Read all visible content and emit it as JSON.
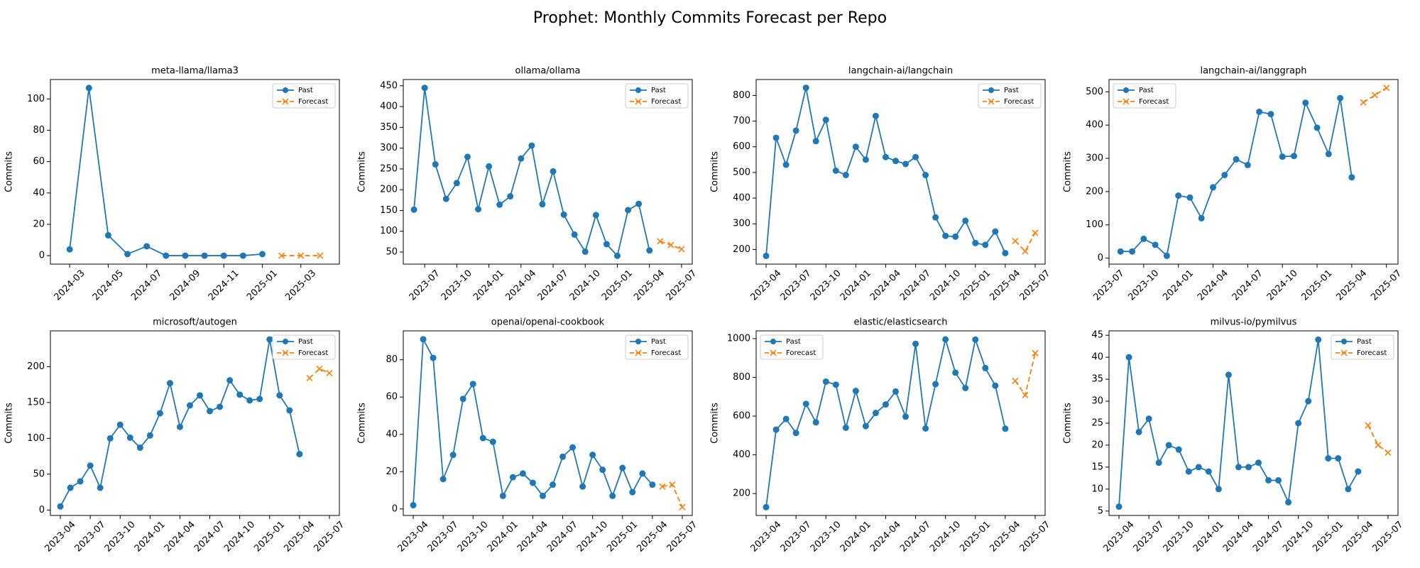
{
  "title": "Prophet: Monthly Commits Forecast per Repo",
  "chart_data": [
    {
      "type": "line",
      "title": "meta-llama/llama3",
      "ylabel": "Commits",
      "legend": "upper right",
      "x": [
        "2024-03",
        "2024-04",
        "2024-05",
        "2024-06",
        "2024-07",
        "2024-08",
        "2024-09",
        "2024-10",
        "2024-11",
        "2024-12",
        "2025-01",
        "2025-02",
        "2025-03",
        "2025-04"
      ],
      "series": [
        {
          "name": "Past",
          "color": "#1f77b4",
          "marker": "o",
          "linestyle": "solid",
          "values": [
            4,
            107,
            13,
            1,
            6,
            0,
            0,
            0,
            0,
            0,
            1,
            null,
            null,
            null
          ]
        },
        {
          "name": "Forecast",
          "color": "#ff7f0e",
          "marker": "x",
          "linestyle": "dashed",
          "values": [
            null,
            null,
            null,
            null,
            null,
            null,
            null,
            null,
            null,
            null,
            null,
            0,
            0,
            0
          ]
        }
      ],
      "xlim": [
        "2024-02",
        "2025-05"
      ],
      "xticks": [
        "2024-03",
        "2024-05",
        "2024-07",
        "2024-09",
        "2024-11",
        "2025-01",
        "2025-03"
      ],
      "ylim": [
        -5.4,
        112.4
      ],
      "yticks": [
        0,
        20,
        40,
        60,
        80,
        100
      ]
    },
    {
      "type": "line",
      "title": "ollama/ollama",
      "ylabel": "Commits",
      "legend": "upper right",
      "x": [
        "2023-06",
        "2023-07",
        "2023-08",
        "2023-09",
        "2023-10",
        "2023-11",
        "2023-12",
        "2024-01",
        "2024-02",
        "2024-03",
        "2024-04",
        "2024-05",
        "2024-06",
        "2024-07",
        "2024-08",
        "2024-09",
        "2024-10",
        "2024-11",
        "2024-12",
        "2025-01",
        "2025-02",
        "2025-03",
        "2025-04",
        "2025-05",
        "2025-06",
        "2025-07"
      ],
      "series": [
        {
          "name": "Past",
          "color": "#1f77b4",
          "marker": "o",
          "linestyle": "solid",
          "values": [
            152,
            445,
            261,
            178,
            216,
            279,
            153,
            256,
            164,
            184,
            275,
            306,
            165,
            244,
            140,
            92,
            51,
            139,
            69,
            41,
            151,
            166,
            54,
            null,
            null,
            null
          ]
        },
        {
          "name": "Forecast",
          "color": "#ff7f0e",
          "marker": "x",
          "linestyle": "dashed",
          "values": [
            null,
            null,
            null,
            null,
            null,
            null,
            null,
            null,
            null,
            null,
            null,
            null,
            null,
            null,
            null,
            null,
            null,
            null,
            null,
            null,
            null,
            null,
            null,
            76,
            67,
            57
          ]
        }
      ],
      "xlim": [
        "2023-05",
        "2025-08"
      ],
      "xticks": [
        "2023-07",
        "2023-10",
        "2024-01",
        "2024-04",
        "2024-07",
        "2024-10",
        "2025-01",
        "2025-04",
        "2025-07"
      ],
      "ylim": [
        21,
        465
      ],
      "yticks": [
        50,
        100,
        150,
        200,
        250,
        300,
        350,
        400,
        450
      ]
    },
    {
      "type": "line",
      "title": "langchain-ai/langchain",
      "ylabel": "Commits",
      "legend": "upper right",
      "x": [
        "2023-04",
        "2023-05",
        "2023-06",
        "2023-07",
        "2023-08",
        "2023-09",
        "2023-10",
        "2023-11",
        "2023-12",
        "2024-01",
        "2024-02",
        "2024-03",
        "2024-04",
        "2024-05",
        "2024-06",
        "2024-07",
        "2024-08",
        "2024-09",
        "2024-10",
        "2024-11",
        "2024-12",
        "2025-01",
        "2025-02",
        "2025-03",
        "2025-04",
        "2025-05",
        "2025-06",
        "2025-07"
      ],
      "series": [
        {
          "name": "Past",
          "color": "#1f77b4",
          "marker": "o",
          "linestyle": "solid",
          "values": [
            175,
            635,
            530,
            663,
            830,
            622,
            705,
            507,
            490,
            600,
            550,
            720,
            560,
            545,
            533,
            560,
            490,
            325,
            253,
            250,
            312,
            225,
            218,
            270,
            186,
            null,
            null,
            null
          ]
        },
        {
          "name": "Forecast",
          "color": "#ff7f0e",
          "marker": "x",
          "linestyle": "dashed",
          "values": [
            null,
            null,
            null,
            null,
            null,
            null,
            null,
            null,
            null,
            null,
            null,
            null,
            null,
            null,
            null,
            null,
            null,
            null,
            null,
            null,
            null,
            null,
            null,
            null,
            null,
            233,
            193,
            265
          ]
        }
      ],
      "xlim": [
        "2023-03",
        "2025-08"
      ],
      "xticks": [
        "2023-04",
        "2023-07",
        "2023-10",
        "2024-01",
        "2024-04",
        "2024-07",
        "2024-10",
        "2025-01",
        "2025-04",
        "2025-07"
      ],
      "ylim": [
        143,
        862
      ],
      "yticks": [
        200,
        300,
        400,
        500,
        600,
        700,
        800
      ]
    },
    {
      "type": "line",
      "title": "langchain-ai/langgraph",
      "ylabel": "Commits",
      "legend": "upper left",
      "x": [
        "2023-08",
        "2023-09",
        "2023-10",
        "2023-11",
        "2023-12",
        "2024-01",
        "2024-02",
        "2024-03",
        "2024-04",
        "2024-05",
        "2024-06",
        "2024-07",
        "2024-08",
        "2024-09",
        "2024-10",
        "2024-11",
        "2024-12",
        "2025-01",
        "2025-02",
        "2025-03",
        "2025-04",
        "2025-05",
        "2025-06",
        "2025-07"
      ],
      "series": [
        {
          "name": "Past",
          "color": "#1f77b4",
          "marker": "o",
          "linestyle": "solid",
          "values": [
            20,
            20,
            58,
            40,
            7,
            188,
            182,
            120,
            213,
            250,
            297,
            280,
            440,
            433,
            305,
            307,
            467,
            392,
            313,
            481,
            243,
            null,
            null,
            null
          ]
        },
        {
          "name": "Forecast",
          "color": "#ff7f0e",
          "marker": "x",
          "linestyle": "dashed",
          "values": [
            null,
            null,
            null,
            null,
            null,
            null,
            null,
            null,
            null,
            null,
            null,
            null,
            null,
            null,
            null,
            null,
            null,
            null,
            null,
            null,
            null,
            468,
            490,
            512
          ]
        }
      ],
      "xlim": [
        "2023-07",
        "2025-08"
      ],
      "xticks": [
        "2023-07",
        "2023-10",
        "2024-01",
        "2024-04",
        "2024-07",
        "2024-10",
        "2025-01",
        "2025-04",
        "2025-07"
      ],
      "ylim": [
        -18,
        537
      ],
      "yticks": [
        0,
        100,
        200,
        300,
        400,
        500
      ]
    },
    {
      "type": "line",
      "title": "microsoft/autogen",
      "ylabel": "Commits",
      "legend": "upper right",
      "x": [
        "2023-04",
        "2023-05",
        "2023-06",
        "2023-07",
        "2023-08",
        "2023-09",
        "2023-10",
        "2023-11",
        "2023-12",
        "2024-01",
        "2024-02",
        "2024-03",
        "2024-04",
        "2024-05",
        "2024-06",
        "2024-07",
        "2024-08",
        "2024-09",
        "2024-10",
        "2024-11",
        "2024-12",
        "2025-01",
        "2025-02",
        "2025-03",
        "2025-04",
        "2025-05",
        "2025-06",
        "2025-07"
      ],
      "series": [
        {
          "name": "Past",
          "color": "#1f77b4",
          "marker": "o",
          "linestyle": "solid",
          "values": [
            5,
            31,
            40,
            62,
            31,
            100,
            119,
            101,
            87,
            104,
            135,
            177,
            116,
            146,
            160,
            138,
            144,
            181,
            161,
            153,
            155,
            238,
            160,
            139,
            78,
            null,
            null,
            null
          ]
        },
        {
          "name": "Forecast",
          "color": "#ff7f0e",
          "marker": "x",
          "linestyle": "dashed",
          "values": [
            null,
            null,
            null,
            null,
            null,
            null,
            null,
            null,
            null,
            null,
            null,
            null,
            null,
            null,
            null,
            null,
            null,
            null,
            null,
            null,
            null,
            null,
            null,
            null,
            null,
            184,
            197,
            191
          ]
        }
      ],
      "xlim": [
        "2023-03",
        "2025-08"
      ],
      "xticks": [
        "2023-04",
        "2023-07",
        "2023-10",
        "2024-01",
        "2024-04",
        "2024-07",
        "2024-10",
        "2025-01",
        "2025-04",
        "2025-07"
      ],
      "ylim": [
        -7.6,
        250
      ],
      "yticks": [
        0,
        50,
        100,
        150,
        200
      ]
    },
    {
      "type": "line",
      "title": "openai/openai-cookbook",
      "ylabel": "Commits",
      "legend": "upper right",
      "x": [
        "2023-04",
        "2023-05",
        "2023-06",
        "2023-07",
        "2023-08",
        "2023-09",
        "2023-10",
        "2023-11",
        "2023-12",
        "2024-01",
        "2024-02",
        "2024-03",
        "2024-04",
        "2024-05",
        "2024-06",
        "2024-07",
        "2024-08",
        "2024-09",
        "2024-10",
        "2024-11",
        "2024-12",
        "2025-01",
        "2025-02",
        "2025-03",
        "2025-04",
        "2025-05",
        "2025-06",
        "2025-07"
      ],
      "series": [
        {
          "name": "Past",
          "color": "#1f77b4",
          "marker": "o",
          "linestyle": "solid",
          "values": [
            2,
            91,
            81,
            16,
            29,
            59,
            67,
            38,
            36,
            7,
            17,
            19,
            14,
            7,
            13,
            28,
            33,
            12,
            29,
            21,
            7,
            22,
            9,
            19,
            13,
            null,
            null,
            null
          ]
        },
        {
          "name": "Forecast",
          "color": "#ff7f0e",
          "marker": "x",
          "linestyle": "dashed",
          "values": [
            null,
            null,
            null,
            null,
            null,
            null,
            null,
            null,
            null,
            null,
            null,
            null,
            null,
            null,
            null,
            null,
            null,
            null,
            null,
            null,
            null,
            null,
            null,
            null,
            null,
            12,
            13,
            1
          ]
        }
      ],
      "xlim": [
        "2023-03",
        "2025-08"
      ],
      "xticks": [
        "2023-04",
        "2023-07",
        "2023-10",
        "2024-01",
        "2024-04",
        "2024-07",
        "2024-10",
        "2025-01",
        "2025-04",
        "2025-07"
      ],
      "ylim": [
        -3.5,
        95.5
      ],
      "yticks": [
        0,
        20,
        40,
        60,
        80
      ]
    },
    {
      "type": "line",
      "title": "elastic/elasticsearch",
      "ylabel": "Commits",
      "legend": "upper left",
      "x": [
        "2023-04",
        "2023-05",
        "2023-06",
        "2023-07",
        "2023-08",
        "2023-09",
        "2023-10",
        "2023-11",
        "2023-12",
        "2024-01",
        "2024-02",
        "2024-03",
        "2024-04",
        "2024-05",
        "2024-06",
        "2024-07",
        "2024-08",
        "2024-09",
        "2024-10",
        "2024-11",
        "2024-12",
        "2025-01",
        "2025-02",
        "2025-03",
        "2025-04",
        "2025-05",
        "2025-06",
        "2025-07"
      ],
      "series": [
        {
          "name": "Past",
          "color": "#1f77b4",
          "marker": "o",
          "linestyle": "solid",
          "values": [
            130,
            530,
            585,
            513,
            663,
            568,
            778,
            762,
            540,
            730,
            548,
            616,
            660,
            727,
            597,
            973,
            536,
            765,
            996,
            824,
            745,
            995,
            848,
            757,
            535,
            null,
            null,
            null
          ]
        },
        {
          "name": "Forecast",
          "color": "#ff7f0e",
          "marker": "x",
          "linestyle": "dashed",
          "values": [
            null,
            null,
            null,
            null,
            null,
            null,
            null,
            null,
            null,
            null,
            null,
            null,
            null,
            null,
            null,
            null,
            null,
            null,
            null,
            null,
            null,
            null,
            null,
            null,
            null,
            782,
            708,
            925
          ]
        }
      ],
      "xlim": [
        "2023-03",
        "2025-08"
      ],
      "xticks": [
        "2023-04",
        "2023-07",
        "2023-10",
        "2024-01",
        "2024-04",
        "2024-07",
        "2024-10",
        "2025-01",
        "2025-04",
        "2025-07"
      ],
      "ylim": [
        87,
        1040
      ],
      "yticks": [
        200,
        400,
        600,
        800,
        1000
      ]
    },
    {
      "type": "line",
      "title": "milvus-io/pymilvus",
      "ylabel": "Commits",
      "legend": "upper right",
      "x": [
        "2023-04",
        "2023-05",
        "2023-06",
        "2023-07",
        "2023-08",
        "2023-09",
        "2023-10",
        "2023-11",
        "2023-12",
        "2024-01",
        "2024-02",
        "2024-03",
        "2024-04",
        "2024-05",
        "2024-06",
        "2024-07",
        "2024-08",
        "2024-09",
        "2024-10",
        "2024-11",
        "2024-12",
        "2025-01",
        "2025-02",
        "2025-03",
        "2025-04",
        "2025-05",
        "2025-06",
        "2025-07"
      ],
      "series": [
        {
          "name": "Past",
          "color": "#1f77b4",
          "marker": "o",
          "linestyle": "solid",
          "values": [
            6,
            40,
            23,
            26,
            16,
            20,
            19,
            14,
            15,
            14,
            10,
            36,
            15,
            15,
            16,
            12,
            12,
            7,
            25,
            30,
            44,
            17,
            17,
            10,
            14,
            null,
            null,
            null
          ]
        },
        {
          "name": "Forecast",
          "color": "#ff7f0e",
          "marker": "x",
          "linestyle": "dashed",
          "values": [
            null,
            null,
            null,
            null,
            null,
            null,
            null,
            null,
            null,
            null,
            null,
            null,
            null,
            null,
            null,
            null,
            null,
            null,
            null,
            null,
            null,
            null,
            null,
            null,
            null,
            24.5,
            20,
            18.3
          ]
        }
      ],
      "xlim": [
        "2023-03",
        "2025-08"
      ],
      "xticks": [
        "2023-04",
        "2023-07",
        "2023-10",
        "2024-01",
        "2024-04",
        "2024-07",
        "2024-10",
        "2025-01",
        "2025-04",
        "2025-07"
      ],
      "ylim": [
        4,
        46
      ],
      "yticks": [
        5,
        10,
        15,
        20,
        25,
        30,
        35,
        40,
        45
      ]
    }
  ]
}
